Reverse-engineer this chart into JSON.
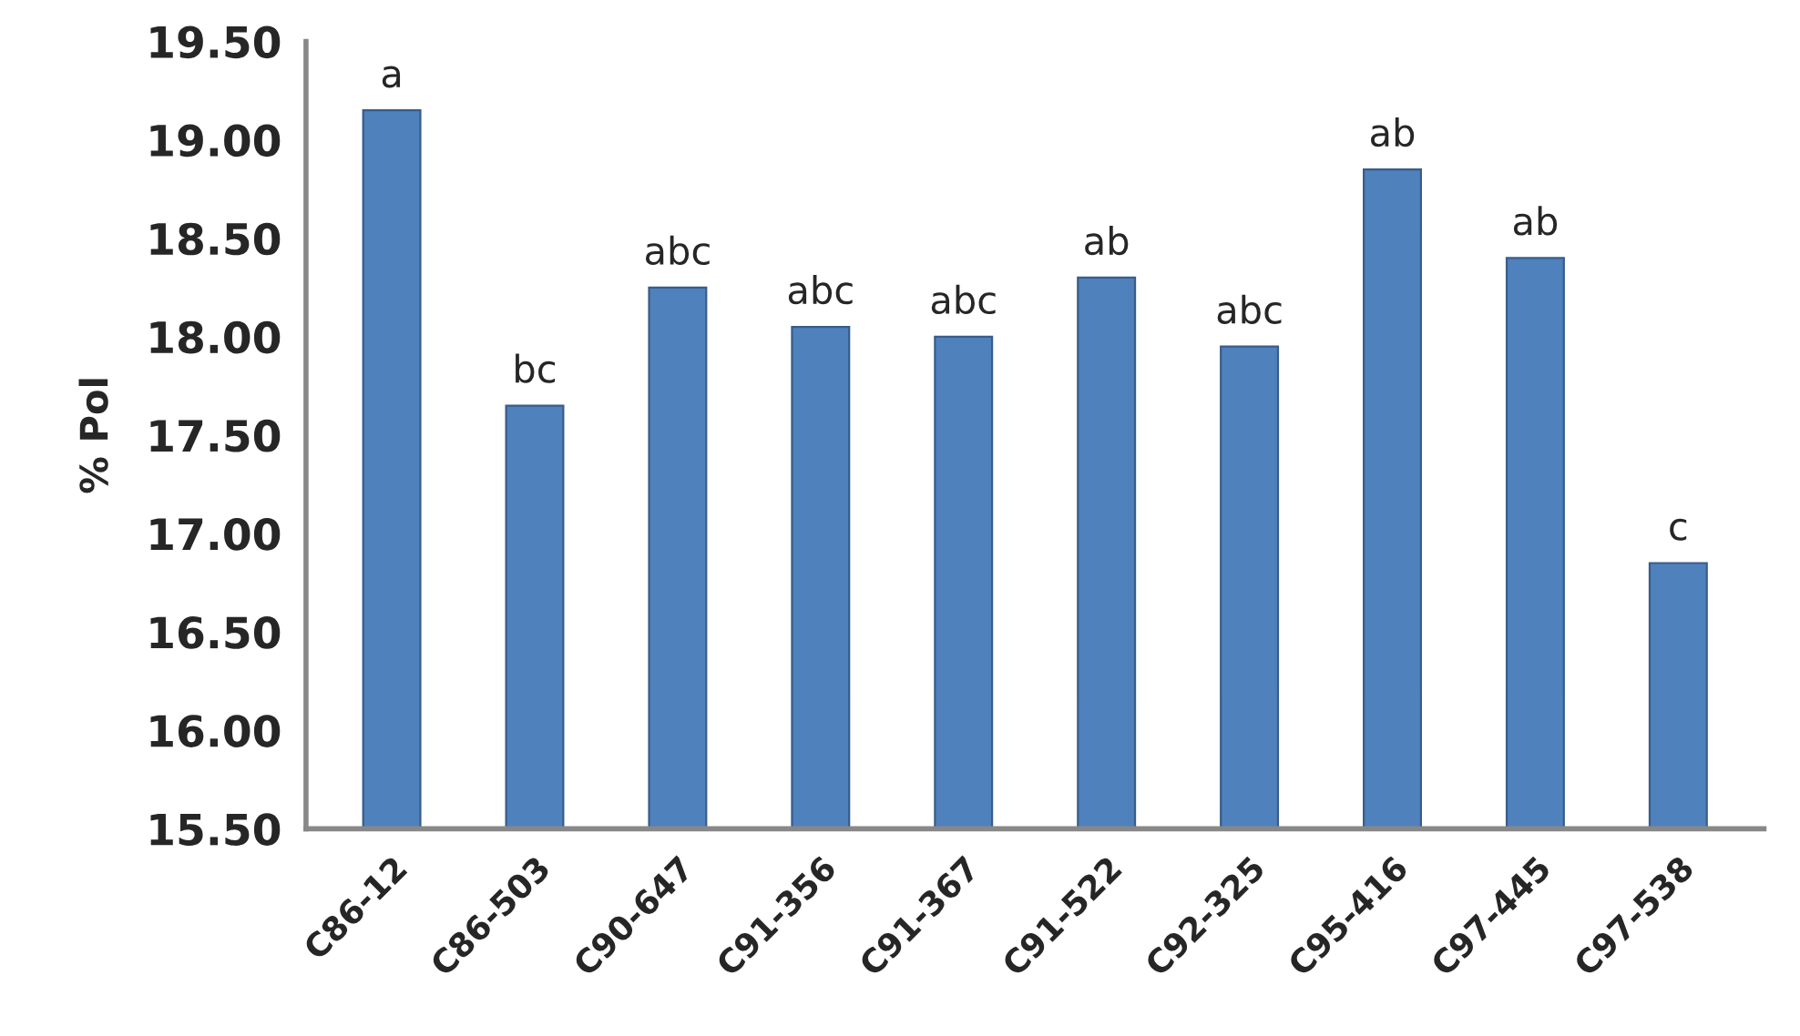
{
  "chart_data": {
    "type": "bar",
    "ylabel": "% Pol",
    "categories": [
      "C86-12",
      "C86-503",
      "C90-647",
      "C91-356",
      "C91-367",
      "C91-522",
      "C92-325",
      "C95-416",
      "C97-445",
      "C97-538"
    ],
    "values": [
      19.15,
      17.65,
      18.25,
      18.05,
      18.0,
      18.3,
      17.95,
      18.85,
      18.4,
      16.85
    ],
    "color": "#4f81bd",
    "ylim": [
      15.5,
      19.5
    ],
    "yticks": [
      {
        "value": 15.5,
        "label": "15.50"
      },
      {
        "value": 16.0,
        "label": "16.00"
      },
      {
        "value": 16.5,
        "label": "16.50"
      },
      {
        "value": 17.0,
        "label": "17.00"
      },
      {
        "value": 17.5,
        "label": "17.50"
      },
      {
        "value": 18.0,
        "label": "18.00"
      },
      {
        "value": 18.5,
        "label": "18.50"
      },
      {
        "value": 19.0,
        "label": "19.00"
      },
      {
        "value": 19.5,
        "label": "19.50"
      }
    ],
    "value_labels": [
      "a",
      "bc",
      "abc",
      "abc",
      "abc",
      "ab",
      "abc",
      "ab",
      "ab",
      "c"
    ],
    "grid": false
  }
}
